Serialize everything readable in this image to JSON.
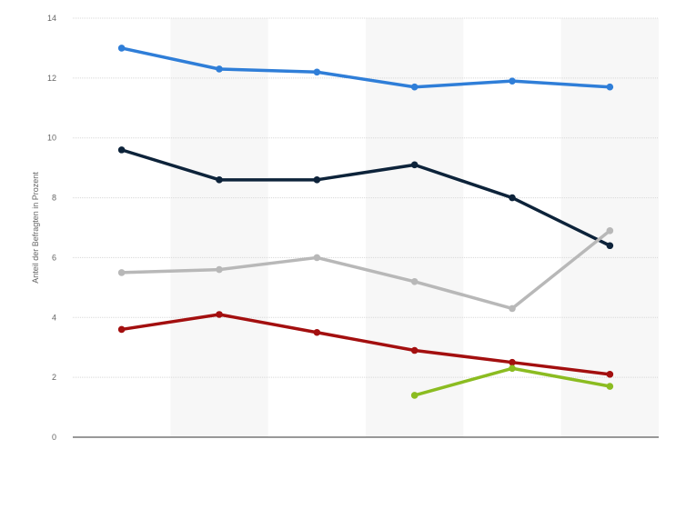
{
  "chart_data": {
    "type": "line",
    "title": "",
    "xlabel": "",
    "ylabel": "Anteil der Befragten in Prozent",
    "ylim": [
      0,
      14
    ],
    "yticks": [
      0,
      2,
      4,
      6,
      8,
      10,
      12,
      14
    ],
    "grid": true,
    "legend": "none",
    "categories": [
      "",
      "",
      "",
      "",
      "",
      ""
    ],
    "series": [
      {
        "color": "#2f7ed8",
        "values": [
          13.0,
          12.3,
          12.2,
          11.7,
          11.9,
          11.7
        ]
      },
      {
        "color": "#0d233a",
        "values": [
          9.6,
          8.6,
          8.6,
          9.1,
          8.0,
          6.4
        ]
      },
      {
        "color": "#b8b8b8",
        "values": [
          5.5,
          5.6,
          6.0,
          5.2,
          4.3,
          6.9
        ]
      },
      {
        "color": "#a30f0f",
        "values": [
          3.6,
          4.1,
          3.5,
          2.9,
          2.5,
          2.1
        ]
      },
      {
        "color": "#8bbc21",
        "values": [
          null,
          null,
          null,
          1.4,
          2.3,
          1.7
        ]
      }
    ]
  }
}
